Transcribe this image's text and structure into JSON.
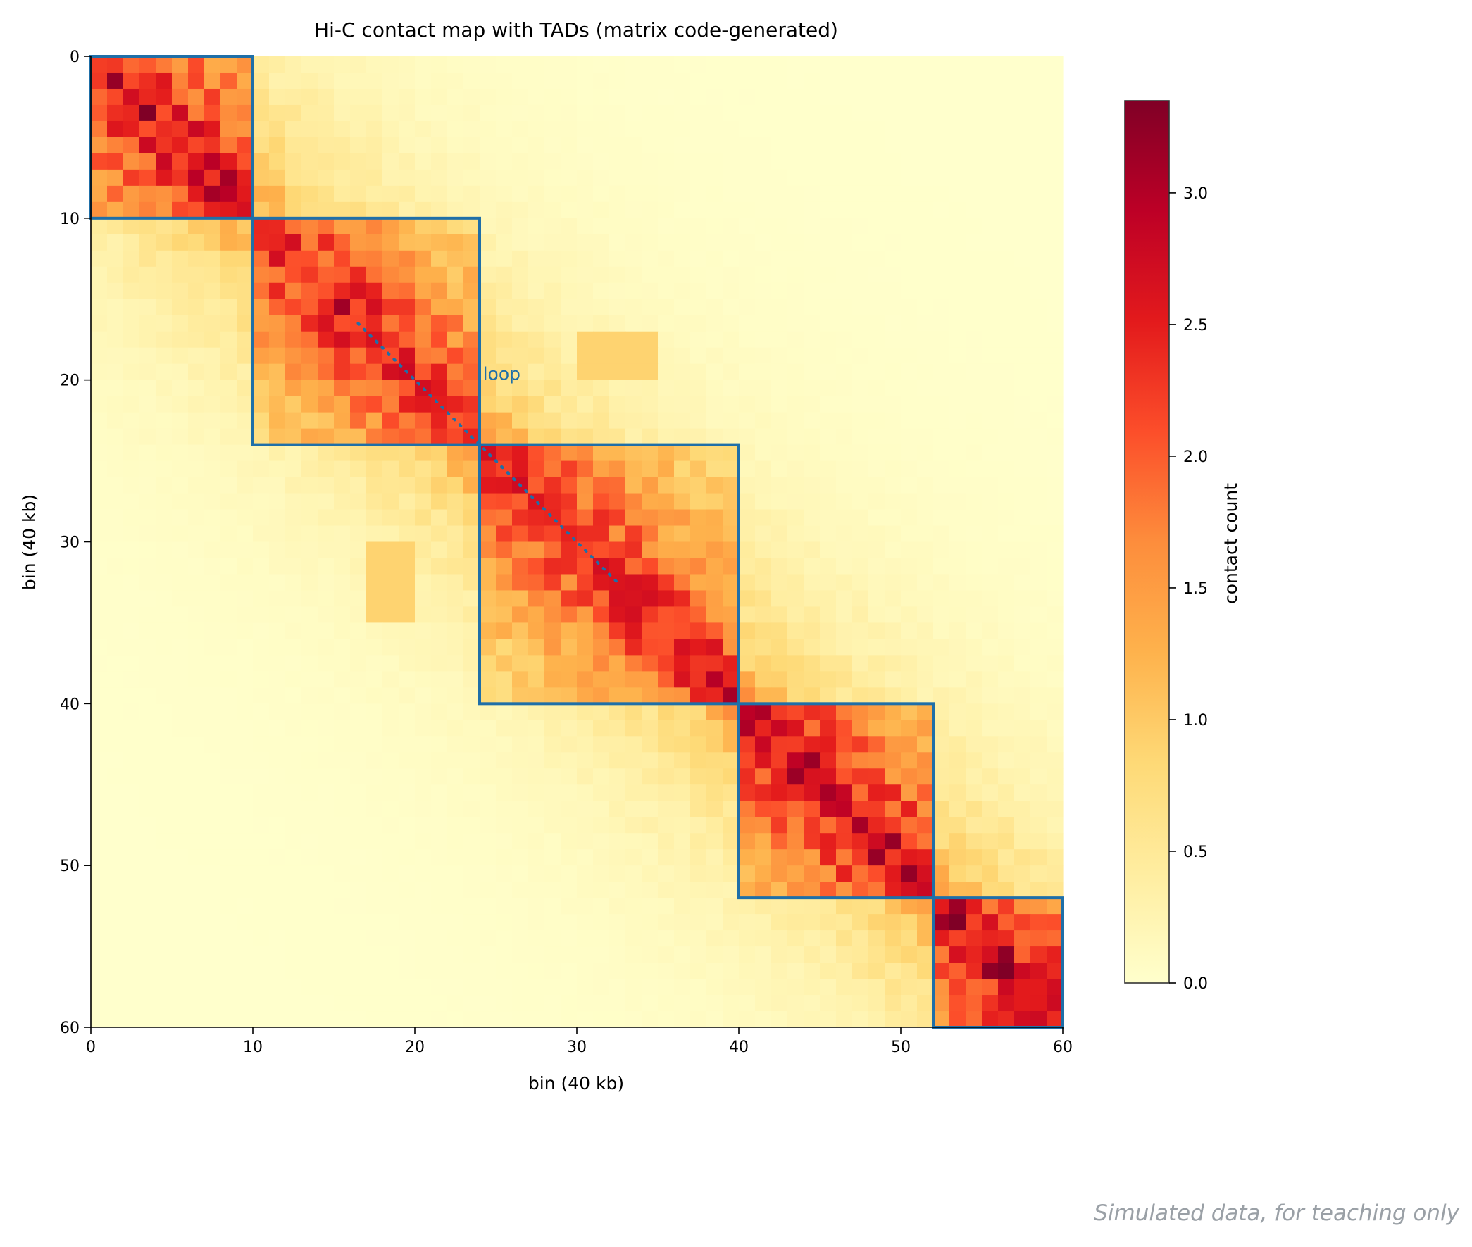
{
  "chart_data": {
    "type": "heatmap",
    "title": "Hi-C contact map with TADs (matrix code-generated)",
    "xlabel": "bin (40 kb)",
    "ylabel": "bin (40 kb)",
    "n_bins": 60,
    "xlim": [
      0,
      60
    ],
    "ylim": [
      60,
      0
    ],
    "x_ticks": [
      0,
      10,
      20,
      30,
      40,
      50,
      60
    ],
    "y_ticks": [
      0,
      10,
      20,
      30,
      40,
      50,
      60
    ],
    "colorbar": {
      "label": "contact count",
      "range": [
        0.0,
        3.35
      ],
      "ticks": [
        "0.0",
        "0.5",
        "1.0",
        "1.5",
        "2.0",
        "2.5",
        "3.0"
      ],
      "tick_values": [
        0.0,
        0.5,
        1.0,
        1.5,
        2.0,
        2.5,
        3.0
      ],
      "colormap": "YlOrRd",
      "stops": [
        "#ffffcc",
        "#ffeda0",
        "#fed976",
        "#feb24c",
        "#fd8d3c",
        "#fc4e2a",
        "#e31a1c",
        "#bd0026",
        "#800026"
      ]
    },
    "tads": [
      {
        "start": 0,
        "end": 10
      },
      {
        "start": 10,
        "end": 24
      },
      {
        "start": 24,
        "end": 40
      },
      {
        "start": 40,
        "end": 52
      },
      {
        "start": 52,
        "end": 60
      }
    ],
    "tad_strength": [
      3.1,
      2.8,
      2.75,
      3.05,
      3.15
    ],
    "loops": [
      {
        "x": [
          17,
          20
        ],
        "y": [
          30,
          35
        ],
        "value": 0.9
      },
      {
        "x": [
          30,
          35
        ],
        "y": [
          17,
          20
        ],
        "value": 0.9
      }
    ],
    "annotations": [
      {
        "text": "loop",
        "x": 24.2,
        "y": 19.6
      }
    ],
    "tad_outline_color": "#1f6fa8",
    "grid": false
  },
  "footnote": "Simulated data, for teaching only"
}
